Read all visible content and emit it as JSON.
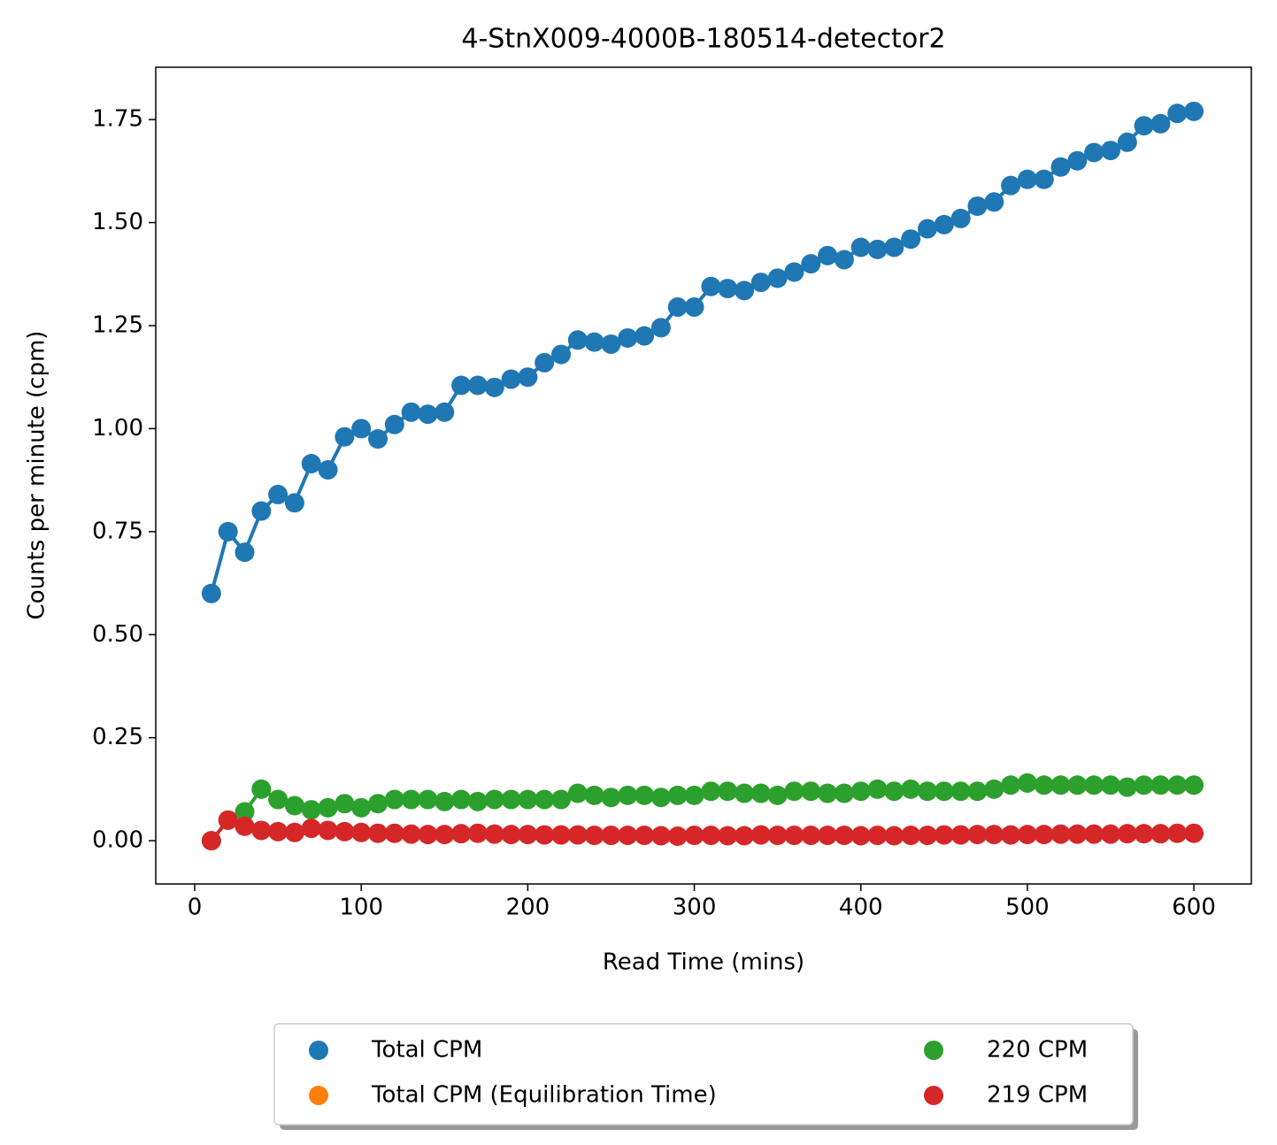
{
  "chart_data": {
    "type": "line",
    "title": "4-StnX009-4000B-180514-detector2",
    "xlabel": "Read Time (mins)",
    "ylabel": "Counts per minute (cpm)",
    "x": [
      10,
      20,
      30,
      40,
      50,
      60,
      70,
      80,
      90,
      100,
      110,
      120,
      130,
      140,
      150,
      160,
      170,
      180,
      190,
      200,
      210,
      220,
      230,
      240,
      250,
      260,
      270,
      280,
      290,
      300,
      310,
      320,
      330,
      340,
      350,
      360,
      370,
      380,
      390,
      400,
      410,
      420,
      430,
      440,
      450,
      460,
      470,
      480,
      490,
      500,
      510,
      520,
      530,
      540,
      550,
      560,
      570,
      580,
      590,
      600
    ],
    "series": [
      {
        "name": "Total CPM",
        "color": "#1f77b4",
        "values": [
          0.6,
          0.75,
          0.7,
          0.8,
          0.84,
          0.82,
          0.915,
          0.9,
          0.98,
          1.0,
          0.975,
          1.01,
          1.04,
          1.035,
          1.04,
          1.105,
          1.105,
          1.1,
          1.12,
          1.125,
          1.16,
          1.18,
          1.215,
          1.21,
          1.205,
          1.22,
          1.225,
          1.245,
          1.295,
          1.295,
          1.345,
          1.34,
          1.335,
          1.355,
          1.365,
          1.38,
          1.4,
          1.42,
          1.41,
          1.44,
          1.435,
          1.44,
          1.46,
          1.485,
          1.495,
          1.51,
          1.54,
          1.55,
          1.59,
          1.605,
          1.605,
          1.635,
          1.65,
          1.67,
          1.675,
          1.695,
          1.735,
          1.74,
          1.765,
          1.77
        ]
      },
      {
        "name": "Total CPM (Equilibration Time)",
        "color": "#ff7f0e",
        "values": [
          null,
          null,
          null,
          null,
          null,
          null,
          null,
          null,
          null,
          null,
          null,
          null,
          null,
          null,
          null,
          null,
          null,
          null,
          null,
          null,
          null,
          null,
          null,
          null,
          null,
          null,
          null,
          null,
          null,
          null,
          null,
          null,
          null,
          null,
          null,
          null,
          null,
          null,
          null,
          null,
          null,
          null,
          null,
          null,
          null,
          null,
          null,
          null,
          null,
          null,
          null,
          null,
          null,
          null,
          null,
          null,
          null,
          null,
          null,
          null
        ]
      },
      {
        "name": "220 CPM",
        "color": "#2ca02c",
        "values": [
          0,
          0.05,
          0.07,
          0.125,
          0.1,
          0.085,
          0.075,
          0.08,
          0.09,
          0.08,
          0.09,
          0.1,
          0.1,
          0.1,
          0.095,
          0.1,
          0.095,
          0.1,
          0.1,
          0.1,
          0.1,
          0.1,
          0.115,
          0.11,
          0.105,
          0.11,
          0.11,
          0.105,
          0.11,
          0.11,
          0.12,
          0.12,
          0.115,
          0.115,
          0.11,
          0.12,
          0.12,
          0.115,
          0.115,
          0.12,
          0.125,
          0.12,
          0.125,
          0.12,
          0.12,
          0.12,
          0.12,
          0.125,
          0.135,
          0.14,
          0.135,
          0.135,
          0.135,
          0.135,
          0.135,
          0.13,
          0.135,
          0.135,
          0.135,
          0.135
        ]
      },
      {
        "name": "219 CPM",
        "color": "#d62728",
        "values": [
          0,
          0.05,
          0.035,
          0.025,
          0.022,
          0.02,
          0.03,
          0.025,
          0.022,
          0.02,
          0.018,
          0.018,
          0.016,
          0.015,
          0.015,
          0.017,
          0.018,
          0.016,
          0.015,
          0.015,
          0.014,
          0.014,
          0.014,
          0.013,
          0.013,
          0.013,
          0.013,
          0.012,
          0.011,
          0.013,
          0.013,
          0.012,
          0.012,
          0.014,
          0.013,
          0.013,
          0.013,
          0.013,
          0.013,
          0.012,
          0.013,
          0.012,
          0.013,
          0.013,
          0.014,
          0.014,
          0.015,
          0.015,
          0.014,
          0.015,
          0.015,
          0.016,
          0.016,
          0.016,
          0.016,
          0.017,
          0.017,
          0.017,
          0.018,
          0.018
        ]
      }
    ],
    "xlim": [
      -23.4,
      634.5
    ],
    "ylim": [
      -0.105,
      1.877
    ],
    "xticks": [
      0,
      100,
      200,
      300,
      400,
      500,
      600
    ],
    "yticks": [
      {
        "value": 0,
        "label": "0.00"
      },
      0.25,
      {
        "value": 0.5,
        "label": "0.50"
      },
      0.75,
      {
        "value": 1,
        "label": "1.00"
      },
      1.25,
      {
        "value": 1.5,
        "label": "1.50"
      },
      1.75
    ],
    "grid": false,
    "legend_position": "below",
    "legend_columns": 2
  }
}
